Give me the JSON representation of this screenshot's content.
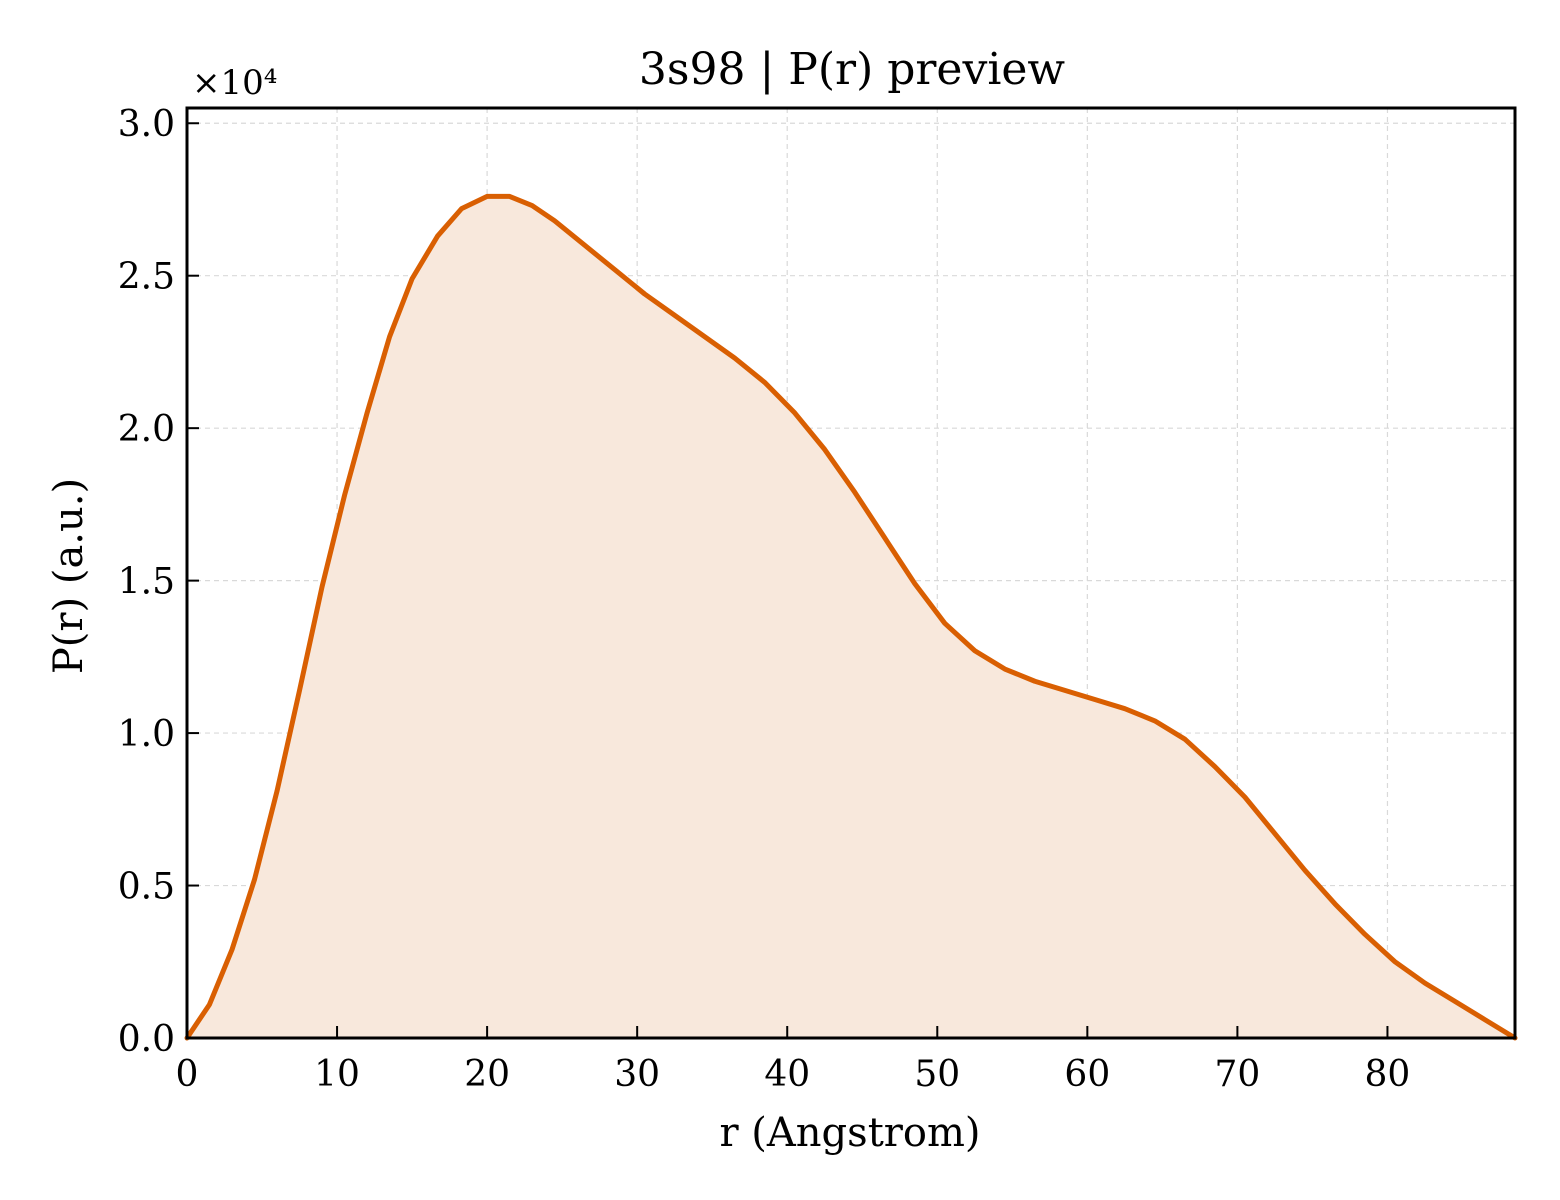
{
  "chart_data": {
    "type": "area",
    "title": "3s98 | P(r) preview",
    "xlabel": "r (Angstrom)",
    "ylabel": "P(r) (a.u.)",
    "y_offset_label": "×10⁴",
    "y_scale_factor": 10000,
    "xlim": [
      0,
      88.5
    ],
    "ylim": [
      0,
      3.05
    ],
    "xticks": [
      0,
      10,
      20,
      30,
      40,
      50,
      60,
      70,
      80
    ],
    "xtick_labels": [
      "0",
      "10",
      "20",
      "30",
      "40",
      "50",
      "60",
      "70",
      "80"
    ],
    "yticks": [
      0,
      0.5,
      1.0,
      1.5,
      2.0,
      2.5,
      3.0
    ],
    "ytick_labels": [
      "0.0",
      "0.5",
      "1.0",
      "1.5",
      "2.0",
      "2.5",
      "3.0"
    ],
    "grid": true,
    "legend": "none",
    "colors": {
      "line": "#d95f02",
      "fill": "#f8e8dc",
      "grid": "#d9d9d9",
      "axes": "#000000"
    },
    "series": [
      {
        "x": [
          0,
          1.5,
          3.0,
          4.5,
          6.0,
          7.5,
          9.0,
          10.5,
          12.0,
          13.5,
          15.0,
          16.7,
          18.3,
          20.0,
          21.5,
          23.0,
          24.5,
          26.5,
          28.5,
          30.5,
          32.5,
          34.5,
          36.5,
          38.5,
          40.5,
          42.5,
          44.5,
          46.5,
          48.5,
          50.5,
          52.5,
          54.5,
          56.5,
          58.5,
          60.5,
          62.5,
          64.5,
          66.5,
          68.5,
          70.5,
          72.5,
          74.5,
          76.5,
          78.5,
          80.5,
          82.5,
          84.5,
          86.5,
          88.5
        ],
        "y": [
          0.0,
          0.11,
          0.29,
          0.52,
          0.81,
          1.14,
          1.48,
          1.78,
          2.05,
          2.3,
          2.49,
          2.63,
          2.72,
          2.76,
          2.76,
          2.73,
          2.68,
          2.6,
          2.52,
          2.44,
          2.37,
          2.3,
          2.23,
          2.15,
          2.05,
          1.93,
          1.79,
          1.64,
          1.49,
          1.36,
          1.27,
          1.21,
          1.17,
          1.14,
          1.11,
          1.08,
          1.04,
          0.98,
          0.89,
          0.79,
          0.67,
          0.55,
          0.44,
          0.34,
          0.25,
          0.18,
          0.12,
          0.06,
          0.0
        ]
      }
    ]
  }
}
